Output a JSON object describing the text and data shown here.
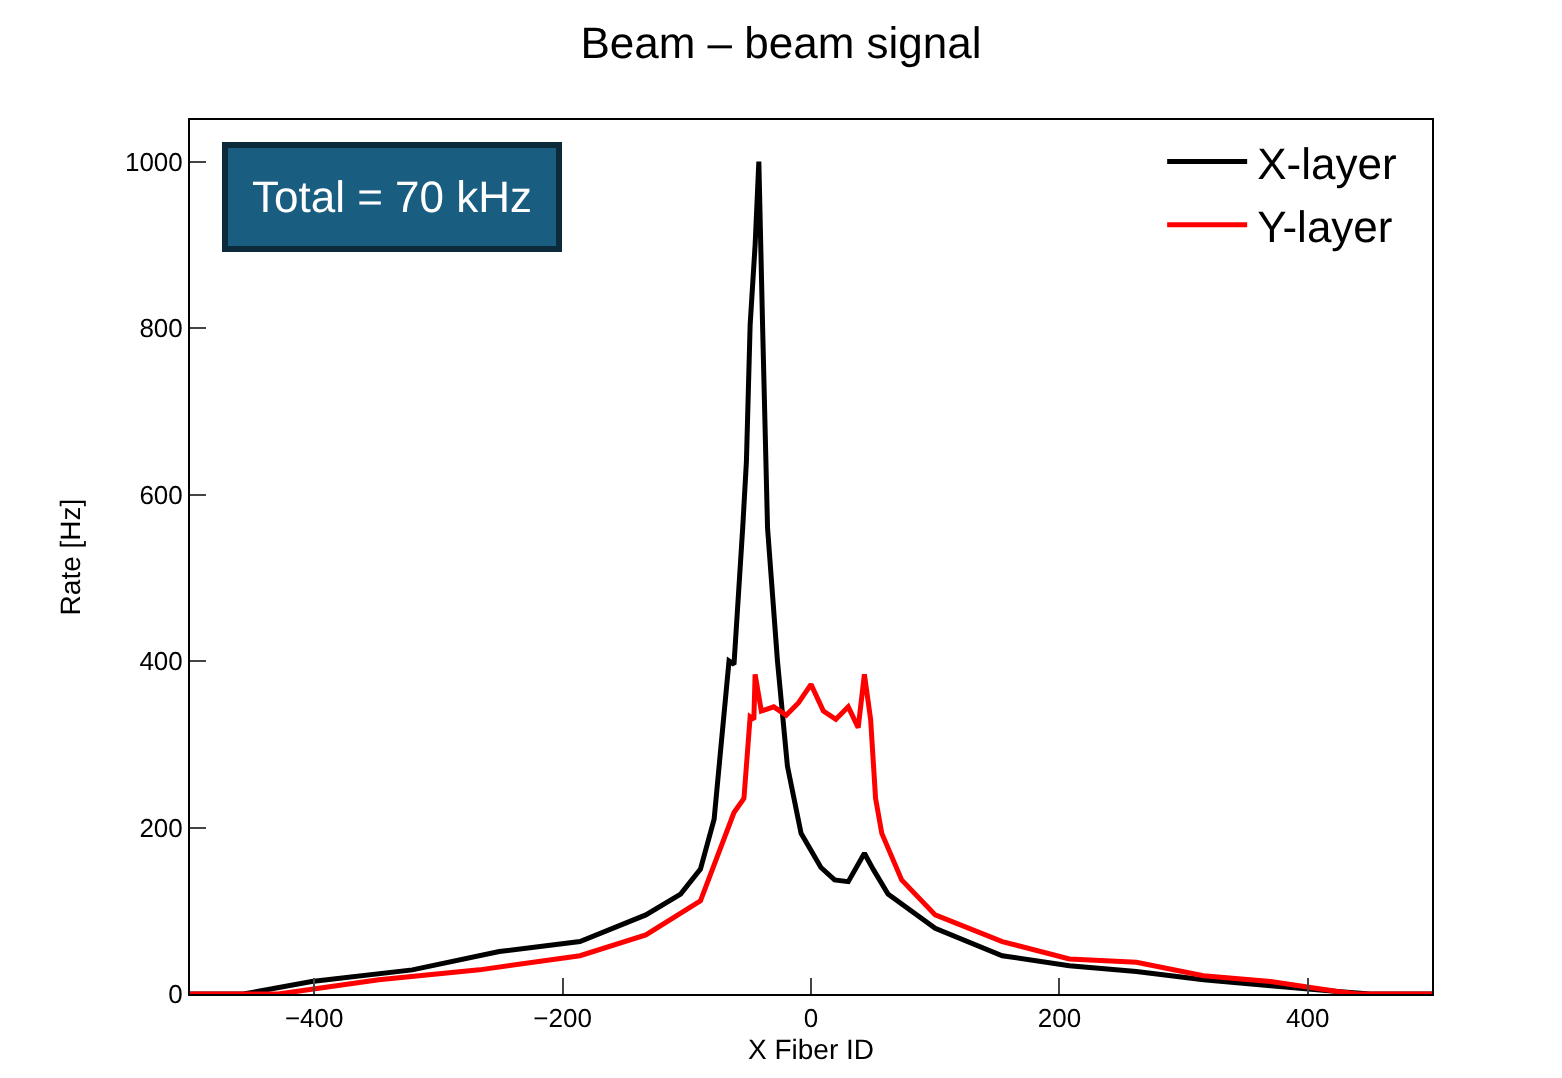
{
  "chart_data": {
    "type": "line",
    "title": "Beam – beam signal",
    "xlabel": "X Fiber ID",
    "ylabel": "Rate [Hz]",
    "xlim": [
      -500,
      500
    ],
    "xticks": [
      -400,
      -200,
      0,
      200,
      400
    ],
    "ylim": [
      0,
      1050
    ],
    "yticks": [
      0,
      200,
      400,
      600,
      800,
      1000
    ],
    "legend": "top right",
    "marker": "none",
    "line_style": "solid",
    "annotations": [
      "Total = 70 kHz"
    ],
    "series": [
      {
        "name": "X-layer",
        "color": "#000000",
        "x": [
          -500,
          -457,
          -402,
          -321,
          -251,
          -186,
          -133,
          -105,
          -89,
          -78,
          -66,
          -62,
          -55,
          -52,
          -49,
          -45,
          -42,
          -39,
          -35,
          -27,
          -19,
          -8,
          8,
          19,
          30,
          43,
          50,
          62,
          100,
          154,
          208,
          262,
          316,
          370,
          424,
          450,
          500
        ],
        "values": [
          0,
          0,
          15,
          29,
          51,
          63,
          95,
          120,
          150,
          210,
          400,
          396,
          560,
          640,
          804,
          900,
          1000,
          804,
          560,
          400,
          274,
          193,
          152,
          137,
          135,
          169,
          150,
          120,
          79,
          46,
          34,
          27,
          17,
          10,
          3,
          0,
          0
        ]
      },
      {
        "name": "Y-layer",
        "color": "#ff0000",
        "x": [
          -500,
          -429,
          -348,
          -267,
          -186,
          -133,
          -89,
          -62,
          -54,
          -49,
          -46,
          -45,
          -40,
          -30,
          -20,
          -10,
          0,
          10,
          20,
          30,
          38,
          43,
          48,
          52,
          57,
          73,
          100,
          154,
          208,
          262,
          316,
          370,
          424,
          440,
          500
        ],
        "values": [
          0,
          0,
          17,
          29,
          46,
          71,
          112,
          218,
          235,
          333,
          330,
          384,
          340,
          345,
          335,
          350,
          372,
          340,
          330,
          345,
          320,
          384,
          330,
          235,
          193,
          137,
          95,
          63,
          42,
          38,
          22,
          15,
          3,
          0,
          0
        ]
      }
    ]
  }
}
